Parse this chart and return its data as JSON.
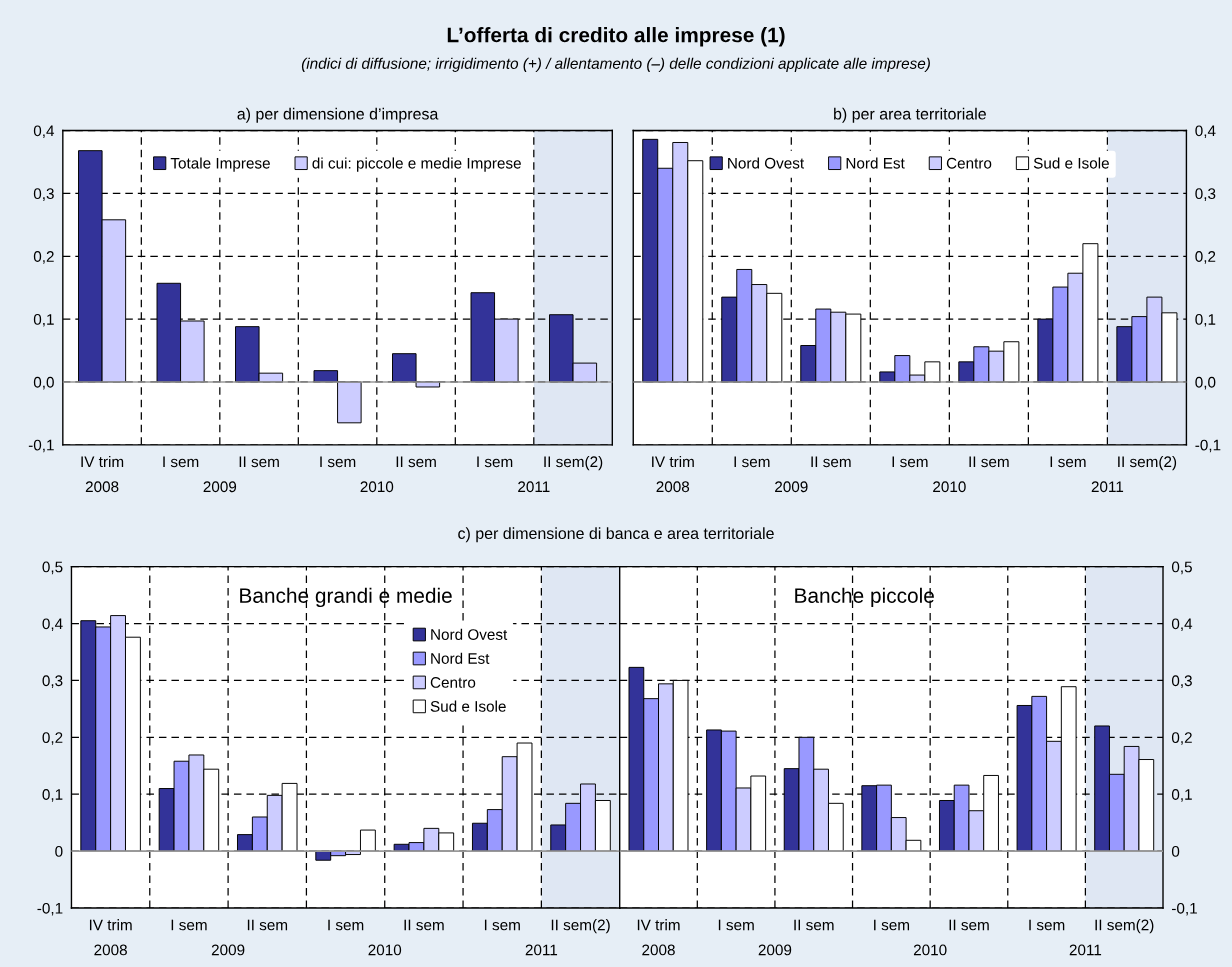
{
  "chart_data": [
    {
      "type": "other",
      "title": "L’offerta di credito alle imprese (1)",
      "subtitle": "(indici di diffusione; irrigidimento (+) / allentamento (–) delle condizioni applicate alle imprese)"
    },
    {
      "type": "bar",
      "title": "a) per dimensione d’impresa",
      "categories": [
        "IV trim",
        "I sem",
        "II sem",
        "I sem",
        "II sem",
        "I sem",
        "II sem(2)"
      ],
      "series": [
        {
          "name": "Totale Imprese",
          "color": "#333399",
          "values": [
            0.368,
            0.157,
            0.088,
            0.018,
            0.045,
            0.142,
            0.107
          ]
        },
        {
          "name": "di cui: piccole e medie Imprese",
          "color": "#ccccff",
          "values": [
            0.258,
            0.097,
            0.014,
            -0.065,
            -0.008,
            0.1,
            0.03
          ]
        }
      ],
      "ylim": [
        -0.1,
        0.4
      ],
      "yticks": [
        {
          "value": -0.1,
          "label": "-0,1"
        },
        {
          "value": 0.0,
          "label": "0,0"
        },
        {
          "value": 0.1,
          "label": "0,1"
        },
        {
          "value": 0.2,
          "label": "0,2"
        },
        {
          "value": 0.3,
          "label": "0,3"
        },
        {
          "value": 0.4,
          "label": "0,4"
        }
      ],
      "annotations": [
        "2008",
        "2009",
        "2010",
        "2011"
      ],
      "bands": [
        {
          "axis": "x",
          "from": "II sem(2)",
          "to": "II sem(2)",
          "color": "#dfe7f3"
        }
      ],
      "grid": true,
      "legend": "top"
    },
    {
      "type": "bar",
      "title": "b) per area territoriale",
      "categories": [
        "IV trim",
        "I sem",
        "II sem",
        "I sem",
        "II sem",
        "I sem",
        "II sem(2)"
      ],
      "series": [
        {
          "name": "Nord Ovest",
          "color": "#333399",
          "axis": "y2",
          "values": [
            0.386,
            0.135,
            0.058,
            0.016,
            0.032,
            0.1,
            0.088
          ]
        },
        {
          "name": "Nord Est",
          "color": "#9999ff",
          "axis": "y2",
          "values": [
            0.34,
            0.179,
            0.116,
            0.042,
            0.056,
            0.151,
            0.104
          ]
        },
        {
          "name": "Centro",
          "color": "#ccccff",
          "axis": "y2",
          "values": [
            0.381,
            0.155,
            0.111,
            0.011,
            0.049,
            0.173,
            0.135
          ]
        },
        {
          "name": "Sud e Isole",
          "color": "#ffffff",
          "axis": "y2",
          "values": [
            0.352,
            0.141,
            0.108,
            0.032,
            0.064,
            0.22,
            0.11
          ]
        }
      ],
      "y2lim": [
        -0.1,
        0.4
      ],
      "y2ticks": [
        {
          "value": -0.1,
          "label": "-0,1"
        },
        {
          "value": 0.0,
          "label": "0,0"
        },
        {
          "value": 0.1,
          "label": "0,1"
        },
        {
          "value": 0.2,
          "label": "0,2"
        },
        {
          "value": 0.3,
          "label": "0,3"
        },
        {
          "value": 0.4,
          "label": "0,4"
        }
      ],
      "annotations": [
        "2008",
        "2009",
        "2010",
        "2011"
      ],
      "bands": [
        {
          "axis": "x",
          "from": "II sem(2)",
          "to": "II sem(2)",
          "color": "#dfe7f3"
        }
      ],
      "grid": true,
      "legend": "top"
    },
    {
      "type": "bar",
      "title": "Banche grandi e medie",
      "subtitle": "c) per dimensione di banca e area territoriale",
      "categories": [
        "IV trim",
        "I sem",
        "II sem",
        "I sem",
        "II sem",
        "I sem",
        "II sem(2)"
      ],
      "series": [
        {
          "name": "Nord Ovest",
          "color": "#333399",
          "values": [
            0.405,
            0.11,
            0.029,
            -0.016,
            0.012,
            0.049,
            0.046
          ]
        },
        {
          "name": "Nord Est",
          "color": "#9999ff",
          "values": [
            0.394,
            0.158,
            0.06,
            -0.008,
            0.015,
            0.073,
            0.084
          ]
        },
        {
          "name": "Centro",
          "color": "#ccccff",
          "values": [
            0.414,
            0.169,
            0.098,
            -0.006,
            0.04,
            0.166,
            0.118
          ]
        },
        {
          "name": "Sud e Isole",
          "color": "#ffffff",
          "values": [
            0.376,
            0.144,
            0.119,
            0.037,
            0.032,
            0.19,
            0.089
          ]
        }
      ],
      "ylim": [
        -0.1,
        0.5
      ],
      "yticks": [
        {
          "value": -0.1,
          "label": "-0,1"
        },
        0,
        {
          "value": 0.1,
          "label": "0,1"
        },
        {
          "value": 0.2,
          "label": "0,2"
        },
        {
          "value": 0.3,
          "label": "0,3"
        },
        {
          "value": 0.4,
          "label": "0,4"
        },
        {
          "value": 0.5,
          "label": "0,5"
        }
      ],
      "annotations": [
        "2008",
        "2009",
        "2010",
        "2011"
      ],
      "bands": [
        {
          "axis": "x",
          "from": "II sem(2)",
          "to": "II sem(2)",
          "color": "#dfe7f3"
        }
      ],
      "grid": true,
      "legend": "top right"
    },
    {
      "type": "bar",
      "title": "Banche piccole",
      "categories": [
        "IV trim",
        "I sem",
        "II sem",
        "I sem",
        "II sem",
        "I sem",
        "II sem(2)"
      ],
      "series": [
        {
          "color": "#333399",
          "axis": "y2",
          "values": [
            0.323,
            0.213,
            0.145,
            0.115,
            0.089,
            0.256,
            0.22
          ]
        },
        {
          "color": "#9999ff",
          "axis": "y2",
          "values": [
            0.268,
            0.211,
            0.2,
            0.116,
            0.116,
            0.272,
            0.135
          ]
        },
        {
          "color": "#ccccff",
          "axis": "y2",
          "values": [
            0.294,
            0.111,
            0.144,
            0.059,
            0.071,
            0.193,
            0.184
          ]
        },
        {
          "color": "#ffffff",
          "axis": "y2",
          "values": [
            0.3,
            0.132,
            0.084,
            0.019,
            0.133,
            0.289,
            0.161
          ]
        }
      ],
      "y2lim": [
        -0.1,
        0.5
      ],
      "y2ticks": [
        {
          "value": -0.1,
          "label": "-0,1"
        },
        0,
        {
          "value": 0.1,
          "label": "0,1"
        },
        {
          "value": 0.2,
          "label": "0,2"
        },
        {
          "value": 0.3,
          "label": "0,3"
        },
        {
          "value": 0.4,
          "label": "0,4"
        },
        {
          "value": 0.5,
          "label": "0,5"
        }
      ],
      "annotations": [
        "2008",
        "2009",
        "2010",
        "2011"
      ],
      "bands": [
        {
          "axis": "x",
          "from": "II sem(2)",
          "to": "II sem(2)",
          "color": "#dfe7f3"
        }
      ],
      "grid": true
    }
  ]
}
